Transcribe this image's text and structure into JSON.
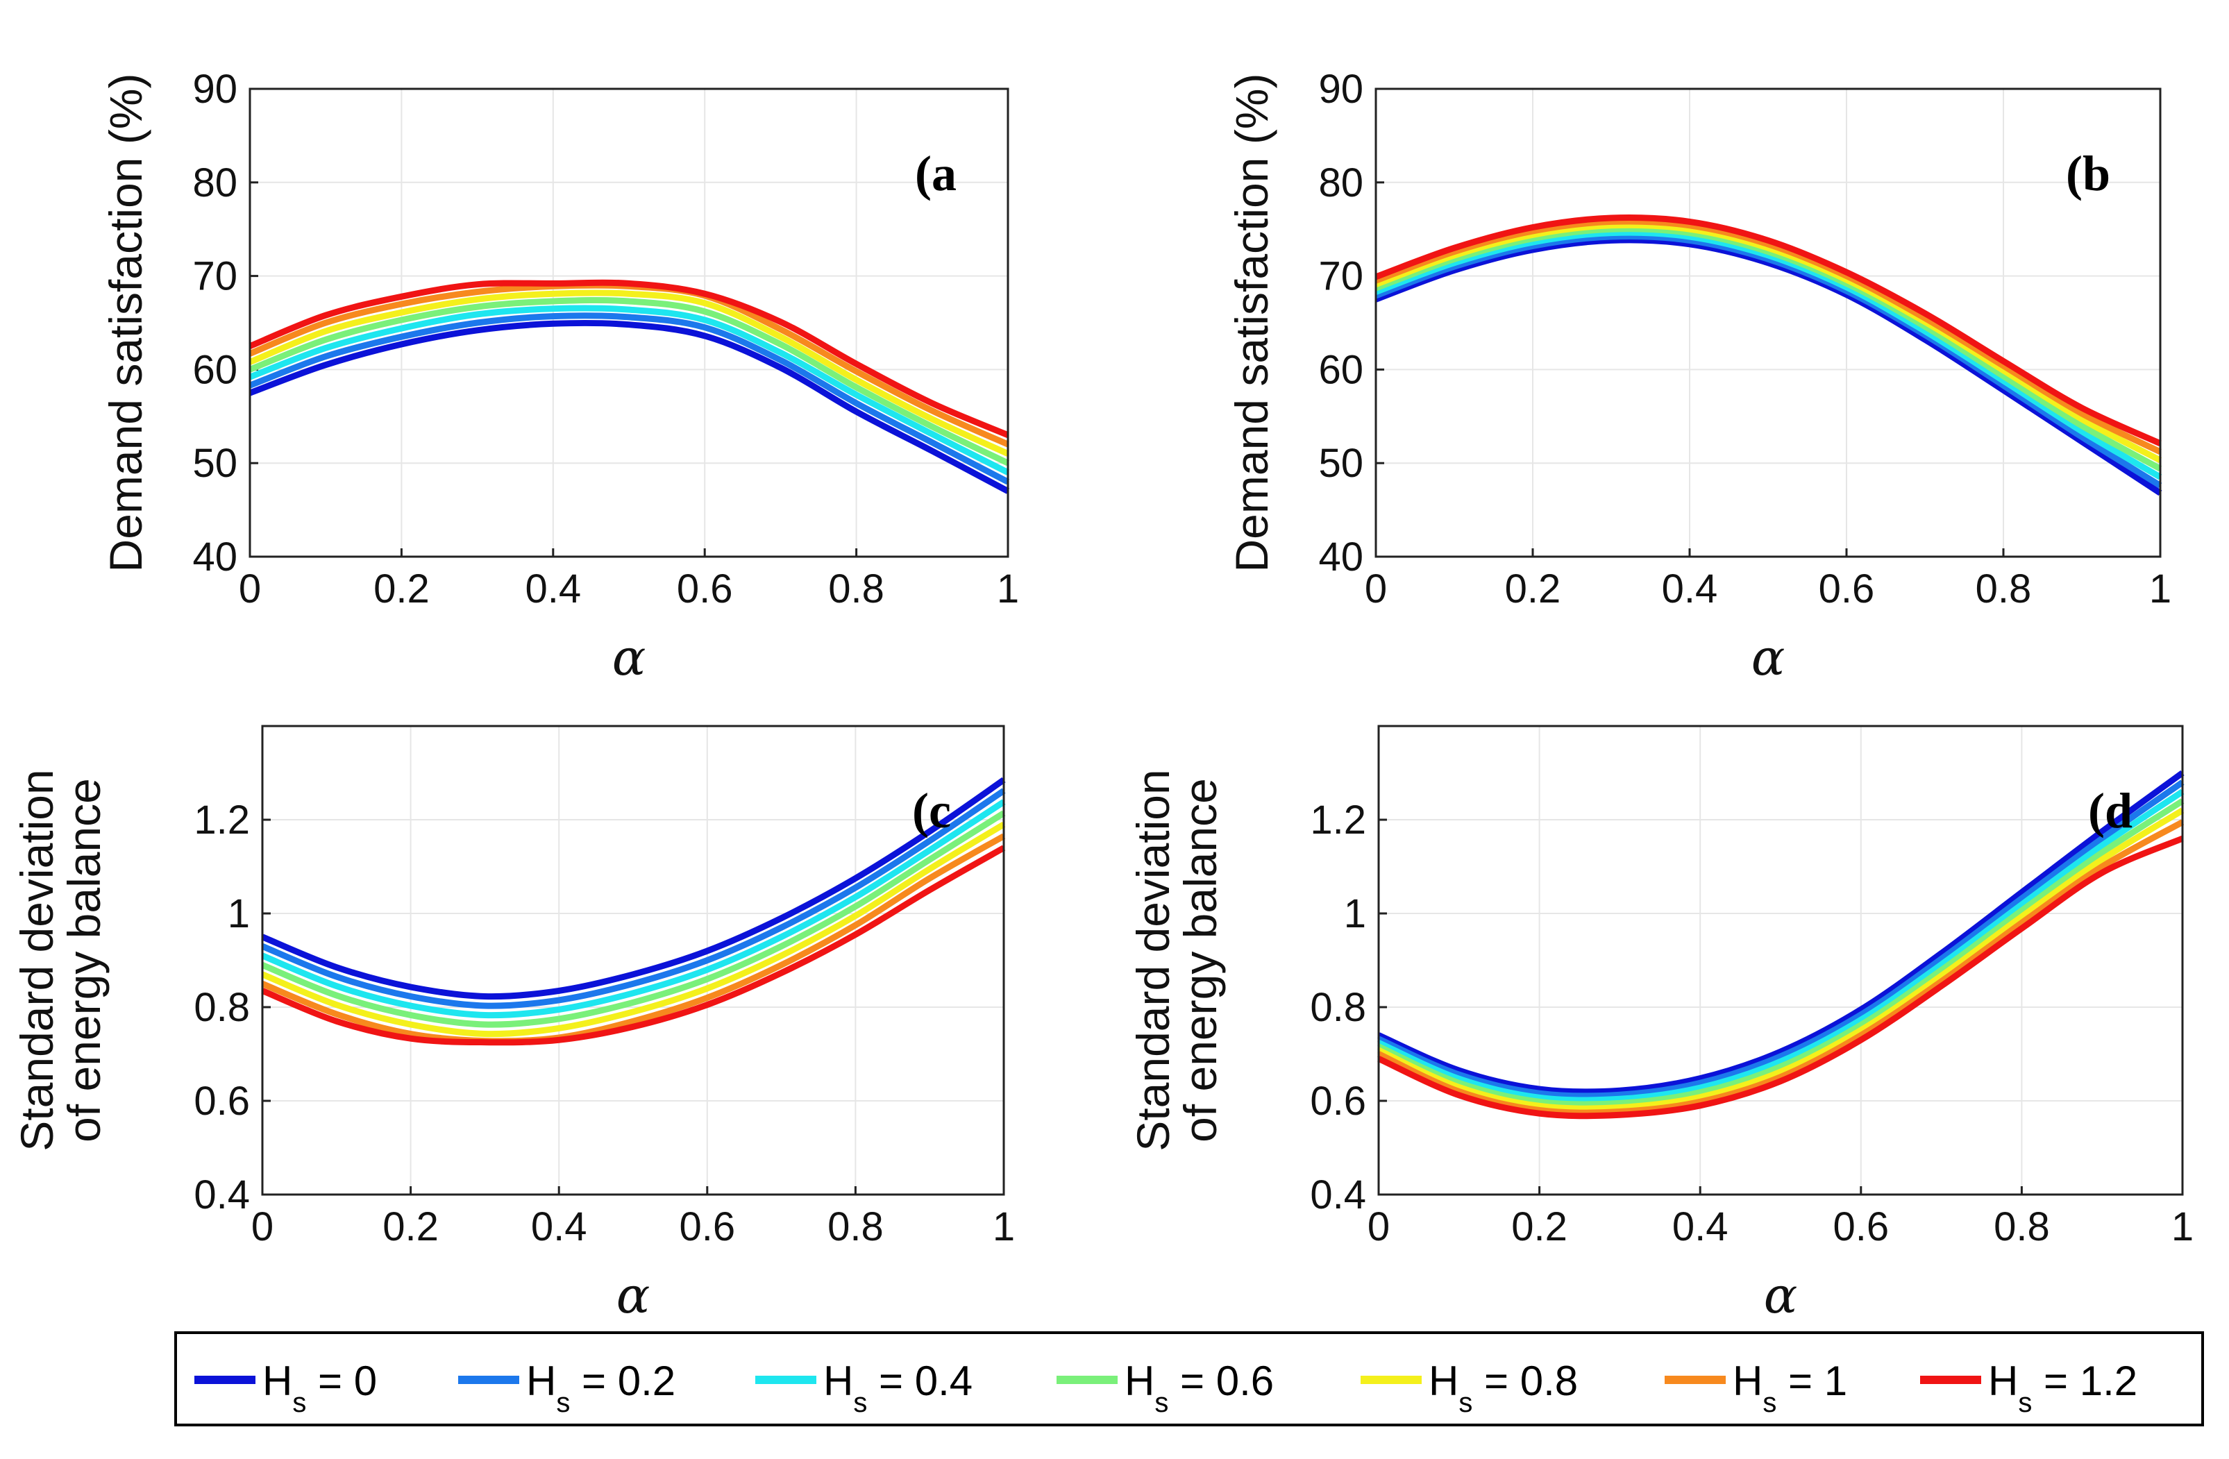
{
  "legend": {
    "prefix": "H",
    "subscript": "s",
    "entries": [
      {
        "label": "H_s = 0",
        "value": "0",
        "color": "#0b12d8"
      },
      {
        "label": "H_s = 0.2",
        "value": "0.2",
        "color": "#1c78ec"
      },
      {
        "label": "H_s = 0.4",
        "value": "0.4",
        "color": "#1ee6ef"
      },
      {
        "label": "H_s = 0.6",
        "value": "0.6",
        "color": "#7af07a"
      },
      {
        "label": "H_s = 0.8",
        "value": "0.8",
        "color": "#f4f01c"
      },
      {
        "label": "H_s = 1",
        "value": "1",
        "color": "#f7891e"
      },
      {
        "label": "H_s = 1.2",
        "value": "1.2",
        "color": "#f01414"
      }
    ]
  },
  "chart_data": [
    {
      "type": "line",
      "panel_label": "(a",
      "title": "",
      "xlabel": "α",
      "ylabel": "Demand satisfaction (%)",
      "xlim": [
        0,
        1
      ],
      "ylim": [
        40,
        90
      ],
      "xticks": [
        "0",
        "0.2",
        "0.4",
        "0.6",
        "0.8",
        "1"
      ],
      "yticks": [
        "40",
        "50",
        "60",
        "70",
        "80",
        "90"
      ],
      "grid": true,
      "x": [
        0,
        0.1,
        0.2,
        0.3,
        0.4,
        0.5,
        0.6,
        0.7,
        0.8,
        0.9,
        1.0
      ],
      "series": [
        {
          "name": "H_s = 0",
          "values": [
            57.5,
            60.5,
            62.7,
            64.2,
            64.9,
            64.8,
            63.6,
            60.2,
            55.5,
            51.3,
            47.0
          ]
        },
        {
          "name": "H_s = 0.2",
          "values": [
            58.3,
            61.4,
            63.5,
            65.0,
            65.7,
            65.6,
            64.5,
            61.0,
            56.4,
            52.2,
            48.0
          ]
        },
        {
          "name": "H_s = 0.4",
          "values": [
            59.2,
            62.3,
            64.4,
            65.9,
            66.5,
            66.4,
            65.3,
            61.8,
            57.3,
            53.1,
            49.0
          ]
        },
        {
          "name": "H_s = 0.6",
          "values": [
            60.0,
            63.2,
            65.3,
            66.7,
            67.3,
            67.3,
            66.2,
            62.7,
            58.1,
            53.9,
            50.0
          ]
        },
        {
          "name": "H_s = 0.8",
          "values": [
            60.8,
            64.1,
            66.1,
            67.5,
            68.1,
            68.1,
            67.1,
            63.5,
            58.9,
            54.7,
            51.0
          ]
        },
        {
          "name": "H_s = 1",
          "values": [
            61.7,
            65.0,
            67.0,
            68.3,
            68.9,
            68.9,
            67.9,
            64.3,
            59.8,
            55.6,
            52.0
          ]
        },
        {
          "name": "H_s = 1.2",
          "values": [
            62.5,
            65.8,
            67.8,
            69.1,
            69.2,
            69.2,
            68.1,
            65.1,
            60.6,
            56.4,
            53.0
          ]
        }
      ]
    },
    {
      "type": "line",
      "panel_label": "(b",
      "title": "",
      "xlabel": "α",
      "ylabel": "Demand satisfaction (%)",
      "xlim": [
        0,
        1
      ],
      "ylim": [
        40,
        90
      ],
      "xticks": [
        "0",
        "0.2",
        "0.4",
        "0.6",
        "0.8",
        "1"
      ],
      "yticks": [
        "40",
        "50",
        "60",
        "70",
        "80",
        "90"
      ],
      "grid": true,
      "x": [
        0,
        0.1,
        0.2,
        0.3,
        0.4,
        0.5,
        0.6,
        0.7,
        0.8,
        0.9,
        1.0
      ],
      "series": [
        {
          "name": "H_s = 0",
          "values": [
            67.5,
            70.6,
            72.8,
            73.8,
            73.4,
            71.4,
            68.0,
            63.2,
            57.8,
            52.3,
            46.8
          ]
        },
        {
          "name": "H_s = 0.2",
          "values": [
            67.9,
            71.0,
            73.2,
            74.2,
            73.8,
            71.8,
            68.4,
            63.7,
            58.3,
            52.8,
            47.6
          ]
        },
        {
          "name": "H_s = 0.4",
          "values": [
            68.3,
            71.4,
            73.6,
            74.6,
            74.2,
            72.2,
            68.8,
            64.1,
            58.8,
            53.4,
            48.5
          ]
        },
        {
          "name": "H_s = 0.6",
          "values": [
            68.7,
            71.8,
            74.0,
            75.0,
            74.6,
            72.6,
            69.2,
            64.6,
            59.3,
            54.0,
            49.4
          ]
        },
        {
          "name": "H_s = 0.8",
          "values": [
            69.1,
            72.2,
            74.4,
            75.4,
            75.0,
            73.0,
            69.6,
            65.1,
            59.9,
            54.7,
            50.3
          ]
        },
        {
          "name": "H_s = 1",
          "values": [
            69.5,
            72.6,
            74.8,
            75.8,
            75.4,
            73.4,
            70.0,
            65.5,
            60.4,
            55.3,
            51.2
          ]
        },
        {
          "name": "H_s = 1.2",
          "values": [
            69.9,
            73.0,
            75.2,
            76.2,
            75.8,
            73.8,
            70.4,
            66.0,
            60.9,
            55.9,
            52.1
          ]
        }
      ]
    },
    {
      "type": "line",
      "panel_label": "(c",
      "title": "",
      "xlabel": "α",
      "ylabel": "Standard deviation of energy balance",
      "ylabel_lines": [
        "Standard deviation",
        "of energy balance"
      ],
      "xlim": [
        0,
        1
      ],
      "ylim": [
        0.4,
        1.4
      ],
      "xticks": [
        "0",
        "0.2",
        "0.4",
        "0.6",
        "0.8",
        "1"
      ],
      "yticks": [
        "0.4",
        "0.6",
        "0.8",
        "1",
        "1.2"
      ],
      "grid": true,
      "x": [
        0,
        0.1,
        0.2,
        0.3,
        0.4,
        0.5,
        0.6,
        0.7,
        0.8,
        0.9,
        1.0
      ],
      "series": [
        {
          "name": "H_s = 0",
          "values": [
            0.95,
            0.885,
            0.843,
            0.823,
            0.835,
            0.87,
            0.92,
            0.99,
            1.075,
            1.175,
            1.285
          ]
        },
        {
          "name": "H_s = 0.2",
          "values": [
            0.93,
            0.865,
            0.823,
            0.803,
            0.815,
            0.85,
            0.9,
            0.97,
            1.055,
            1.155,
            1.262
          ]
        },
        {
          "name": "H_s = 0.4",
          "values": [
            0.91,
            0.845,
            0.803,
            0.783,
            0.795,
            0.83,
            0.88,
            0.95,
            1.035,
            1.135,
            1.238
          ]
        },
        {
          "name": "H_s = 0.6",
          "values": [
            0.89,
            0.825,
            0.783,
            0.763,
            0.775,
            0.81,
            0.86,
            0.93,
            1.015,
            1.115,
            1.214
          ]
        },
        {
          "name": "H_s = 0.8",
          "values": [
            0.87,
            0.805,
            0.763,
            0.743,
            0.755,
            0.79,
            0.84,
            0.91,
            0.995,
            1.095,
            1.19
          ]
        },
        {
          "name": "H_s = 1",
          "values": [
            0.85,
            0.785,
            0.743,
            0.728,
            0.735,
            0.77,
            0.82,
            0.89,
            0.975,
            1.075,
            1.165
          ]
        },
        {
          "name": "H_s = 1.2",
          "values": [
            0.835,
            0.77,
            0.733,
            0.725,
            0.73,
            0.758,
            0.805,
            0.873,
            0.955,
            1.05,
            1.14
          ]
        }
      ]
    },
    {
      "type": "line",
      "panel_label": "(d",
      "title": "",
      "xlabel": "α",
      "ylabel": "Standard deviation of energy balance",
      "ylabel_lines": [
        "Standard deviation",
        "of energy balance"
      ],
      "xlim": [
        0,
        1
      ],
      "ylim": [
        0.4,
        1.4
      ],
      "xticks": [
        "0",
        "0.2",
        "0.4",
        "0.6",
        "0.8",
        "1"
      ],
      "yticks": [
        "0.4",
        "0.6",
        "0.8",
        "1",
        "1.2"
      ],
      "grid": true,
      "x": [
        0,
        0.1,
        0.2,
        0.3,
        0.4,
        0.5,
        0.6,
        0.7,
        0.8,
        0.9,
        1.0
      ],
      "series": [
        {
          "name": "H_s = 0",
          "values": [
            0.74,
            0.665,
            0.625,
            0.622,
            0.648,
            0.705,
            0.795,
            0.915,
            1.045,
            1.175,
            1.3
          ]
        },
        {
          "name": "H_s = 0.2",
          "values": [
            0.732,
            0.656,
            0.616,
            0.613,
            0.638,
            0.695,
            0.784,
            0.903,
            1.032,
            1.16,
            1.28
          ]
        },
        {
          "name": "H_s = 0.4",
          "values": [
            0.724,
            0.647,
            0.607,
            0.604,
            0.628,
            0.684,
            0.773,
            0.891,
            1.019,
            1.145,
            1.26
          ]
        },
        {
          "name": "H_s = 0.6",
          "values": [
            0.716,
            0.638,
            0.598,
            0.595,
            0.618,
            0.673,
            0.762,
            0.879,
            1.006,
            1.13,
            1.24
          ]
        },
        {
          "name": "H_s = 0.8",
          "values": [
            0.708,
            0.629,
            0.589,
            0.586,
            0.608,
            0.662,
            0.751,
            0.867,
            0.993,
            1.115,
            1.22
          ]
        },
        {
          "name": "H_s = 1",
          "values": [
            0.7,
            0.62,
            0.58,
            0.577,
            0.598,
            0.651,
            0.74,
            0.855,
            0.98,
            1.1,
            1.195
          ]
        },
        {
          "name": "H_s = 1.2",
          "values": [
            0.69,
            0.612,
            0.573,
            0.57,
            0.59,
            0.642,
            0.73,
            0.845,
            0.968,
            1.087,
            1.16
          ]
        }
      ]
    }
  ]
}
